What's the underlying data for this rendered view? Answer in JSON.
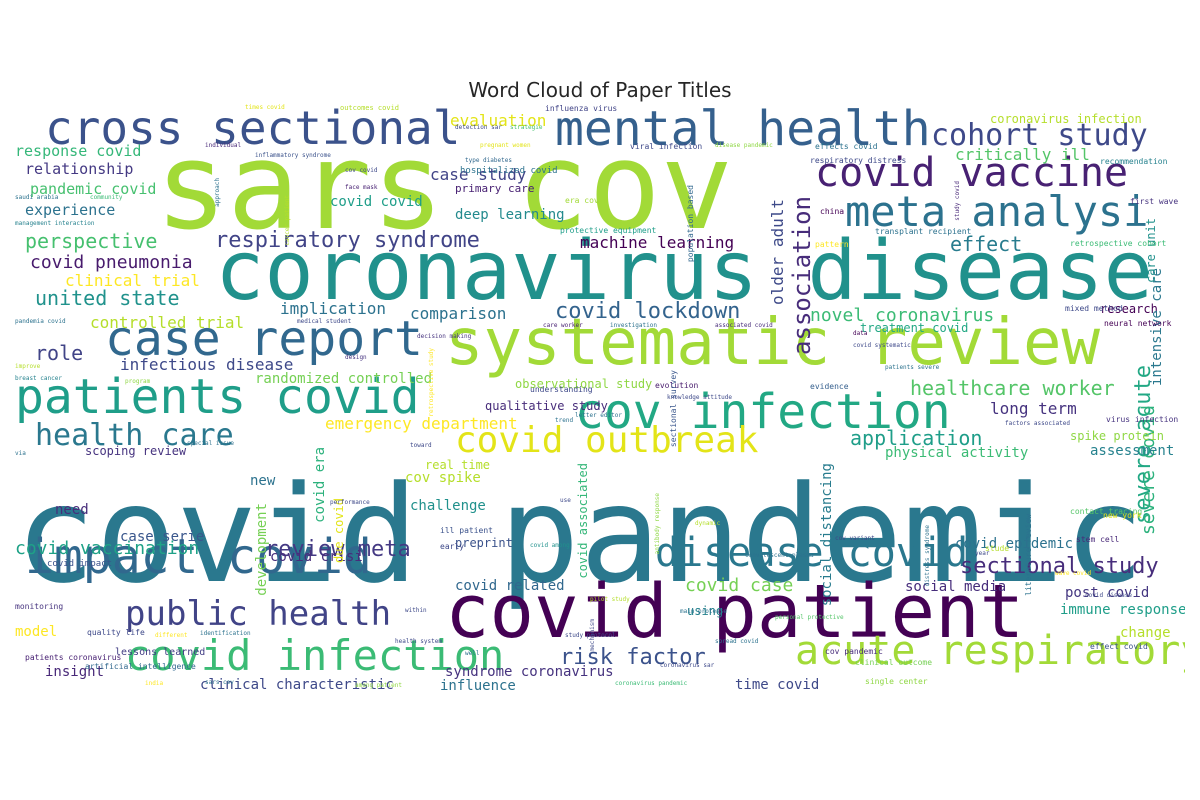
{
  "title": "Word Cloud of Paper Titles",
  "words": [
    {
      "text": "covid pandemic",
      "color": "#2a788e"
    },
    {
      "text": "sars cov",
      "color": "#a2da37"
    },
    {
      "text": "coronavirus disease",
      "color": "#21918c"
    },
    {
      "text": "covid patient",
      "color": "#440154"
    },
    {
      "text": "systematic review",
      "color": "#a2da37"
    },
    {
      "text": "mental health",
      "color": "#35608d"
    },
    {
      "text": "cross sectional",
      "color": "#3b528b"
    },
    {
      "text": "cov infection",
      "color": "#22a884"
    },
    {
      "text": "patients covid",
      "color": "#1f9e89"
    },
    {
      "text": "covid vaccine",
      "color": "#482173"
    },
    {
      "text": "meta analysi",
      "color": "#2c728e"
    },
    {
      "text": "impact covid",
      "color": "#31688e"
    },
    {
      "text": "case report",
      "color": "#31688e"
    },
    {
      "text": "covid infection",
      "color": "#3bbb75"
    },
    {
      "text": "acute respiratory",
      "color": "#a2da37"
    },
    {
      "text": "disease covid",
      "color": "#2a788e"
    },
    {
      "text": "covid outbreak",
      "color": "#e3e418"
    },
    {
      "text": "cohort study",
      "color": "#3e4989"
    },
    {
      "text": "health care",
      "color": "#2a788e"
    },
    {
      "text": "public health",
      "color": "#414487"
    },
    {
      "text": "respiratory syndrome",
      "color": "#414487"
    },
    {
      "text": "review meta",
      "color": "#443983"
    },
    {
      "text": "sectional study",
      "color": "#472d7b"
    },
    {
      "text": "risk factor",
      "color": "#3b528b"
    },
    {
      "text": "severe acute",
      "color": "#22a884"
    },
    {
      "text": "covid lockdown",
      "color": "#33638d"
    },
    {
      "text": "association",
      "color": "#472c7a"
    },
    {
      "text": "healthcare worker",
      "color": "#54c568"
    },
    {
      "text": "perspective",
      "color": "#46c06f"
    },
    {
      "text": "effect",
      "color": "#287c8e"
    },
    {
      "text": "united state",
      "color": "#20928c"
    },
    {
      "text": "role",
      "color": "#414487"
    },
    {
      "text": "application",
      "color": "#1f9e89"
    },
    {
      "text": "covid vaccination",
      "color": "#1fa287"
    },
    {
      "text": "covid case",
      "color": "#75d054"
    },
    {
      "text": "covid pneumonia",
      "color": "#481b6d"
    },
    {
      "text": "novel coronavirus",
      "color": "#3bbb75"
    },
    {
      "text": "severe covid",
      "color": "#2db27d"
    },
    {
      "text": "cov spike",
      "color": "#b5de2b"
    },
    {
      "text": "case study",
      "color": "#414487"
    },
    {
      "text": "emergency department",
      "color": "#fde725"
    },
    {
      "text": "infectious disease",
      "color": "#3e4989"
    },
    {
      "text": "long term",
      "color": "#46337f"
    },
    {
      "text": "clinical trial",
      "color": "#fde725"
    },
    {
      "text": "controlled trial",
      "color": "#b5de2b"
    },
    {
      "text": "older adult",
      "color": "#3e4a89"
    },
    {
      "text": "machine learning",
      "color": "#440154"
    },
    {
      "text": "critically ill",
      "color": "#54c568"
    },
    {
      "text": "implication",
      "color": "#2c728e"
    },
    {
      "text": "comparison",
      "color": "#2c728e"
    },
    {
      "text": "evaluation",
      "color": "#e3e418"
    },
    {
      "text": "response covid",
      "color": "#35b779"
    },
    {
      "text": "relationship",
      "color": "#443983"
    },
    {
      "text": "pandemic covid",
      "color": "#46c06f"
    },
    {
      "text": "experience",
      "color": "#2c728e"
    },
    {
      "text": "deep learning",
      "color": "#238a8d"
    },
    {
      "text": "covid covid",
      "color": "#1f9e89"
    },
    {
      "text": "randomized controlled",
      "color": "#75d054"
    },
    {
      "text": "covid epidemic",
      "color": "#2c728e"
    },
    {
      "text": "post covid",
      "color": "#453781"
    },
    {
      "text": "immune response",
      "color": "#1f9e89"
    },
    {
      "text": "change",
      "color": "#b5de2b"
    },
    {
      "text": "social media",
      "color": "#472d7b"
    },
    {
      "text": "covid related",
      "color": "#31688e"
    },
    {
      "text": "challenge",
      "color": "#21918c"
    },
    {
      "text": "assessment",
      "color": "#26828e"
    },
    {
      "text": "physical activity",
      "color": "#3bbb75"
    },
    {
      "text": "spike protein",
      "color": "#8fd744"
    },
    {
      "text": "real time",
      "color": "#b5de2b"
    },
    {
      "text": "scoping review",
      "color": "#46337f"
    },
    {
      "text": "new",
      "color": "#2c728e"
    },
    {
      "text": "need",
      "color": "#472d7b"
    },
    {
      "text": "model",
      "color": "#fde725"
    },
    {
      "text": "insight",
      "color": "#482878"
    },
    {
      "text": "case serie",
      "color": "#39568c"
    },
    {
      "text": "covid crisi",
      "color": "#472d7b"
    },
    {
      "text": "development",
      "color": "#75d054"
    },
    {
      "text": "preprint",
      "color": "#3b528b"
    },
    {
      "text": "using",
      "color": "#26828e"
    },
    {
      "text": "syndrome coronavirus",
      "color": "#46337f"
    },
    {
      "text": "time covid",
      "color": "#3e4989"
    },
    {
      "text": "clinical characteristic",
      "color": "#3e4989"
    },
    {
      "text": "influence",
      "color": "#2c728e"
    },
    {
      "text": "social distancing",
      "color": "#287c8e"
    },
    {
      "text": "covid associated",
      "color": "#35b779"
    },
    {
      "text": "due covid",
      "color": "#e3e418"
    },
    {
      "text": "covid era",
      "color": "#2db27d"
    },
    {
      "text": "qualitative study",
      "color": "#472c7a"
    },
    {
      "text": "observational study",
      "color": "#8fd744"
    },
    {
      "text": "treatment covid",
      "color": "#22a884"
    },
    {
      "text": "research",
      "color": "#440154"
    },
    {
      "text": "intensive care",
      "color": "#2a788e"
    },
    {
      "text": "care unit",
      "color": "#21918c"
    },
    {
      "text": "primary care",
      "color": "#482173"
    },
    {
      "text": "hospitalized covid",
      "color": "#2c728e"
    },
    {
      "text": "era covid",
      "color": "#a2da37"
    },
    {
      "text": "protective equipment",
      "color": "#1f9e89"
    },
    {
      "text": "understanding",
      "color": "#3e4989"
    },
    {
      "text": "evidence",
      "color": "#355f8d"
    },
    {
      "text": "evolution",
      "color": "#481b6d"
    },
    {
      "text": "sectional survey",
      "color": "#39568c"
    },
    {
      "text": "ill patient",
      "color": "#3b528b"
    },
    {
      "text": "early",
      "color": "#3e4989"
    },
    {
      "text": "covid impact",
      "color": "#3b528b"
    },
    {
      "text": "lessons learned",
      "color": "#433e85"
    },
    {
      "text": "quality life",
      "color": "#3e4989"
    },
    {
      "text": "artificial intelligence",
      "color": "#31688e"
    },
    {
      "text": "patients coronavirus",
      "color": "#482173"
    },
    {
      "text": "monitoring",
      "color": "#46337f"
    },
    {
      "text": "hospitalized patient",
      "color": "#3e4989"
    },
    {
      "text": "single center",
      "color": "#8fd744"
    },
    {
      "text": "clinical outcome",
      "color": "#75d054"
    },
    {
      "text": "cov pandemic",
      "color": "#472c7a"
    },
    {
      "text": "effect covid",
      "color": "#3b528b"
    },
    {
      "text": "coronavirus infection",
      "color": "#b5de2b"
    },
    {
      "text": "effects covid",
      "color": "#2c728e"
    },
    {
      "text": "respiratory distress",
      "color": "#3e4989"
    },
    {
      "text": "recommendation",
      "color": "#26828e"
    },
    {
      "text": "first wave",
      "color": "#46337f"
    },
    {
      "text": "retrospective cohort",
      "color": "#3bbb75"
    },
    {
      "text": "transplant recipient",
      "color": "#2c728e"
    },
    {
      "text": "pattern",
      "color": "#fde725"
    },
    {
      "text": "mixed method",
      "color": "#3e4989"
    },
    {
      "text": "neural network",
      "color": "#440154"
    },
    {
      "text": "virus infection",
      "color": "#46337f"
    },
    {
      "text": "contact tracing",
      "color": "#54c568"
    },
    {
      "text": "literature review",
      "color": "#2c728e"
    },
    {
      "text": "stem cell",
      "color": "#482878"
    },
    {
      "text": "new york",
      "color": "#e3e418"
    },
    {
      "text": "china",
      "color": "#440154"
    },
    {
      "text": "times covid",
      "color": "#e3e418"
    },
    {
      "text": "outcomes covid",
      "color": "#b5de2b"
    },
    {
      "text": "influenza virus",
      "color": "#414487"
    },
    {
      "text": "detection sar",
      "color": "#3e4989"
    },
    {
      "text": "strategie",
      "color": "#46c06f"
    },
    {
      "text": "individual",
      "color": "#482878"
    },
    {
      "text": "inflammatory syndrome",
      "color": "#3b528b"
    },
    {
      "text": "pregnant women",
      "color": "#e3e418"
    },
    {
      "text": "viral infection",
      "color": "#3e4989"
    },
    {
      "text": "disease pandemic",
      "color": "#8fd744"
    },
    {
      "text": "type diabetes",
      "color": "#31688e"
    },
    {
      "text": "cov covid",
      "color": "#3e4989"
    },
    {
      "text": "saudi arabia",
      "color": "#2c728e"
    },
    {
      "text": "community",
      "color": "#3bbb75"
    },
    {
      "text": "management interaction",
      "color": "#26828e"
    },
    {
      "text": "approach",
      "color": "#2c728e"
    },
    {
      "text": "cancer patient",
      "color": "#b5de2b"
    },
    {
      "text": "face mask",
      "color": "#482173"
    },
    {
      "text": "population based",
      "color": "#31688e"
    },
    {
      "text": "study covid",
      "color": "#482878"
    },
    {
      "text": "pandemia covid",
      "color": "#2c728e"
    },
    {
      "text": "medical student",
      "color": "#3e4989"
    },
    {
      "text": "care worker",
      "color": "#482173"
    },
    {
      "text": "investigation",
      "color": "#2c728e"
    },
    {
      "text": "associated covid",
      "color": "#472c7a"
    },
    {
      "text": "decision making",
      "color": "#46337f"
    },
    {
      "text": "data",
      "color": "#440154"
    },
    {
      "text": "covid systematic",
      "color": "#3e4989"
    },
    {
      "text": "patients severe",
      "color": "#2c728e"
    },
    {
      "text": "design",
      "color": "#46337f"
    },
    {
      "text": "retrospective study",
      "color": "#fde725"
    },
    {
      "text": "improve",
      "color": "#b5de2b"
    },
    {
      "text": "breast cancer",
      "color": "#26828e"
    },
    {
      "text": "program",
      "color": "#8fd744"
    },
    {
      "text": "knowledge attitude",
      "color": "#3e4989"
    },
    {
      "text": "trend",
      "color": "#2c728e"
    },
    {
      "text": "toward",
      "color": "#3e4989"
    },
    {
      "text": "letter editor",
      "color": "#2c728e"
    },
    {
      "text": "factors associated",
      "color": "#3e4989"
    },
    {
      "text": "via",
      "color": "#2c728e"
    },
    {
      "text": "special issue",
      "color": "#2c728e"
    },
    {
      "text": "performance",
      "color": "#3e4989"
    },
    {
      "text": "use",
      "color": "#3e4989"
    },
    {
      "text": "dynamic",
      "color": "#b5de2b"
    },
    {
      "text": "personal protective",
      "color": "#54c568"
    },
    {
      "text": "distress syndrome",
      "color": "#2c728e"
    },
    {
      "text": "cov variant",
      "color": "#3e4989"
    },
    {
      "text": "covid among",
      "color": "#21918c"
    },
    {
      "text": "antibody response",
      "color": "#8fd744"
    },
    {
      "text": "pilot study",
      "color": "#b5de2b"
    },
    {
      "text": "main protease",
      "color": "#2c728e"
    },
    {
      "text": "study protocol",
      "color": "#3e4989"
    },
    {
      "text": "spread covid",
      "color": "#2c728e"
    },
    {
      "text": "mechanism",
      "color": "#3e4989"
    },
    {
      "text": "convalescent plasma",
      "color": "#2c728e"
    },
    {
      "text": "coronavirus sar",
      "color": "#3e4989"
    },
    {
      "text": "within",
      "color": "#3e4989"
    },
    {
      "text": "identification",
      "color": "#2c728e"
    },
    {
      "text": "health system",
      "color": "#3e4989"
    },
    {
      "text": "well",
      "color": "#2c728e"
    },
    {
      "text": "different",
      "color": "#fde725"
    },
    {
      "text": "india",
      "color": "#fde725"
    },
    {
      "text": "among patient",
      "color": "#8fd744"
    },
    {
      "text": "coronavirus pandemic",
      "color": "#3bbb75"
    },
    {
      "text": "sars cov",
      "color": "#2c728e"
    },
    {
      "text": "wave covid",
      "color": "#fde725"
    },
    {
      "text": "stude",
      "color": "#b5de2b"
    },
    {
      "text": "covid disease",
      "color": "#3e4989"
    },
    {
      "text": "year",
      "color": "#3e4989"
    }
  ]
}
